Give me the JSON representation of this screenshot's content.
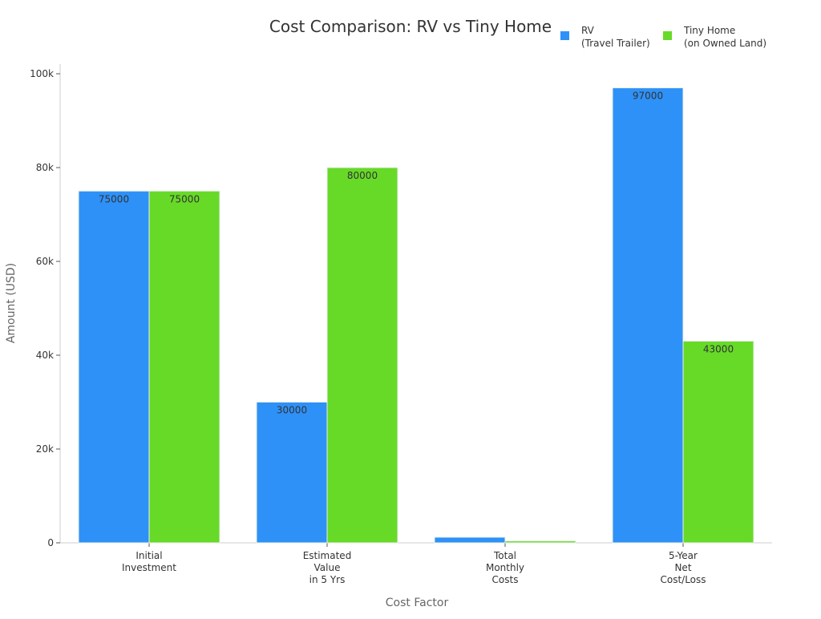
{
  "chart_data": {
    "type": "bar",
    "title": "Cost Comparison: RV vs Tiny Home",
    "xlabel": "Cost Factor",
    "ylabel": "Amount (USD)",
    "categories": [
      [
        "Initial",
        "Investment"
      ],
      [
        "Estimated",
        "Value",
        "in 5 Yrs"
      ],
      [
        "Total",
        "Monthly",
        "Costs"
      ],
      [
        "5-Year",
        "Net",
        "Cost/Loss"
      ]
    ],
    "series": [
      {
        "name": [
          "RV",
          "(Travel Trailer)"
        ],
        "color": "#2e91f8",
        "values": [
          75000,
          30000,
          1200,
          97000
        ]
      },
      {
        "name": [
          "Tiny Home",
          "(on Owned Land)"
        ],
        "color": "#67da28",
        "values": [
          75000,
          80000,
          400,
          43000
        ]
      }
    ],
    "ylim": [
      0,
      102000
    ],
    "yticks": [
      0,
      20000,
      40000,
      60000,
      80000,
      100000
    ],
    "ytick_labels": [
      "0",
      "20k",
      "40k",
      "60k",
      "80k",
      "100k"
    ],
    "grid": false,
    "legend": "top-right"
  }
}
